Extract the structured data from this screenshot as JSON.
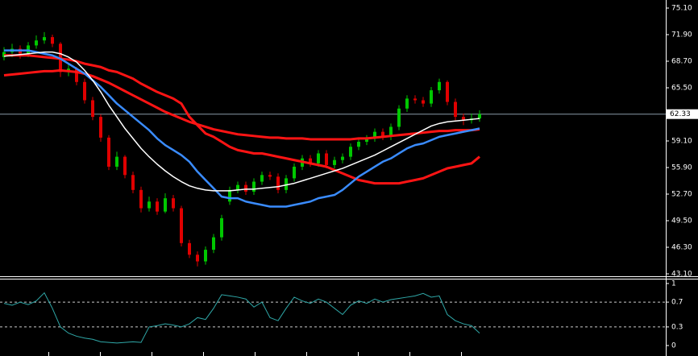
{
  "chart_data": [
    {
      "type": "candlestick",
      "ylim": [
        43.1,
        75.1
      ],
      "yticks": [
        {
          "value": 75.1,
          "label": "75.10"
        },
        {
          "value": 71.9,
          "label": "71.90"
        },
        {
          "value": 68.7,
          "label": "68.70"
        },
        {
          "value": 65.5,
          "label": "65.50"
        },
        {
          "value": 62.3,
          "label": "62.30"
        },
        {
          "value": 59.1,
          "label": "59.10"
        },
        {
          "value": 55.9,
          "label": "55.90"
        },
        {
          "value": 52.7,
          "label": "52.70"
        },
        {
          "value": 49.5,
          "label": "49.50"
        },
        {
          "value": 46.3,
          "label": "46.30"
        },
        {
          "value": 43.1,
          "label": "43.10"
        }
      ],
      "current_price": 62.33,
      "up_color": "#00c800",
      "down_color": "#e00000",
      "open": [
        69.2,
        69.8,
        70.2,
        69.6,
        70.6,
        71.2,
        71.6,
        70.8,
        67.4,
        67.8,
        66.2,
        64.0,
        62.0,
        59.5,
        56.0,
        57.2,
        55.0,
        53.2,
        51.0,
        51.8,
        50.6,
        52.2,
        51.0,
        46.8,
        45.4,
        44.6,
        46.0,
        47.5,
        51.8,
        53.2,
        53.8,
        53.0,
        54.2,
        55.0,
        54.8,
        53.2,
        54.6,
        56.0,
        57.0,
        56.4,
        57.6,
        56.2,
        56.8,
        57.2,
        58.4,
        59.0,
        59.4,
        60.2,
        59.6,
        60.8,
        63.0,
        64.2,
        64.0,
        63.6,
        65.2,
        66.2,
        63.8,
        62.0,
        61.6,
        61.8
      ],
      "high": [
        70.4,
        70.8,
        70.6,
        71.0,
        71.8,
        72.2,
        71.9,
        71.0,
        68.4,
        68.0,
        66.6,
        64.4,
        62.3,
        59.8,
        57.8,
        57.4,
        55.4,
        53.6,
        52.4,
        52.2,
        52.8,
        52.6,
        51.3,
        47.2,
        45.8,
        46.4,
        47.9,
        50.2,
        53.6,
        54.2,
        54.2,
        54.6,
        55.4,
        55.4,
        55.2,
        55.0,
        56.4,
        57.4,
        57.4,
        58.0,
        58.0,
        57.2,
        57.6,
        58.8,
        59.4,
        59.8,
        60.6,
        60.6,
        61.2,
        63.4,
        64.6,
        64.6,
        64.4,
        65.6,
        66.6,
        66.4,
        64.2,
        62.4,
        62.4,
        62.8
      ],
      "low": [
        68.8,
        69.2,
        69.0,
        69.2,
        70.2,
        70.8,
        70.4,
        66.8,
        66.9,
        65.8,
        63.6,
        61.6,
        59.0,
        55.6,
        55.6,
        54.6,
        52.8,
        50.5,
        50.6,
        50.2,
        50.4,
        50.6,
        46.4,
        45.0,
        44.0,
        44.2,
        45.6,
        47.1,
        51.4,
        52.8,
        52.6,
        52.6,
        53.8,
        54.4,
        52.8,
        52.8,
        54.2,
        55.6,
        56.0,
        56.0,
        55.8,
        55.8,
        56.4,
        56.8,
        58.0,
        58.6,
        59.0,
        59.2,
        59.2,
        60.4,
        62.6,
        63.6,
        63.2,
        63.2,
        64.8,
        63.4,
        61.6,
        61.0,
        61.2,
        61.4
      ],
      "close": [
        69.8,
        70.2,
        69.6,
        70.6,
        71.2,
        71.6,
        70.8,
        67.4,
        67.8,
        66.2,
        64.0,
        62.0,
        59.5,
        56.0,
        57.2,
        55.0,
        53.2,
        51.0,
        51.8,
        50.6,
        52.2,
        51.0,
        46.8,
        45.4,
        44.6,
        46.0,
        47.5,
        49.8,
        53.2,
        53.8,
        53.0,
        54.2,
        55.0,
        54.8,
        53.2,
        54.6,
        56.0,
        57.0,
        56.4,
        57.6,
        56.2,
        56.8,
        57.2,
        58.4,
        59.0,
        59.4,
        60.2,
        59.6,
        60.8,
        63.0,
        64.2,
        64.0,
        63.6,
        65.2,
        66.2,
        63.8,
        62.0,
        61.6,
        61.8,
        62.33
      ],
      "series": [
        {
          "color": "#ff1414",
          "width": 3,
          "values": [
            67.0,
            67.1,
            67.2,
            67.3,
            67.4,
            67.5,
            67.5,
            67.6,
            67.5,
            67.4,
            67.2,
            66.9,
            66.5,
            66.1,
            65.6,
            65.1,
            64.6,
            64.1,
            63.6,
            63.1,
            62.6,
            62.2,
            61.8,
            61.4,
            61.1,
            60.8,
            60.5,
            60.3,
            60.1,
            59.9,
            59.8,
            59.7,
            59.6,
            59.5,
            59.5,
            59.4,
            59.4,
            59.4,
            59.3,
            59.3,
            59.3,
            59.3,
            59.3,
            59.3,
            59.4,
            59.4,
            59.5,
            59.6,
            59.7,
            59.8,
            59.9,
            60.0,
            60.1,
            60.2,
            60.3,
            60.3,
            60.4,
            60.4,
            60.4,
            60.5
          ]
        },
        {
          "color": "#ff1414",
          "width": 3,
          "values": [
            69.4,
            69.4,
            69.4,
            69.4,
            69.3,
            69.2,
            69.1,
            69.0,
            68.9,
            68.7,
            68.4,
            68.2,
            68.0,
            67.6,
            67.4,
            67.0,
            66.6,
            66.0,
            65.5,
            65.0,
            64.6,
            64.2,
            63.6,
            62.0,
            61.0,
            60.0,
            59.6,
            59.0,
            58.4,
            58.0,
            57.8,
            57.6,
            57.6,
            57.4,
            57.2,
            57.0,
            56.8,
            56.6,
            56.4,
            56.2,
            56.0,
            55.6,
            55.2,
            54.8,
            54.4,
            54.2,
            54.0,
            54.0,
            54.0,
            54.0,
            54.2,
            54.4,
            54.6,
            55.0,
            55.4,
            55.8,
            56.0,
            56.2,
            56.4,
            57.2
          ]
        },
        {
          "color": "#3a8cff",
          "width": 2.5,
          "values": [
            70.0,
            70.0,
            70.0,
            70.0,
            69.8,
            69.6,
            69.4,
            69.0,
            68.4,
            67.8,
            67.2,
            66.4,
            65.6,
            64.6,
            63.6,
            62.8,
            62.0,
            61.2,
            60.4,
            59.4,
            58.6,
            58.0,
            57.4,
            56.6,
            55.4,
            54.4,
            53.4,
            52.4,
            52.2,
            52.2,
            51.8,
            51.6,
            51.4,
            51.2,
            51.2,
            51.2,
            51.4,
            51.6,
            51.8,
            52.2,
            52.4,
            52.6,
            53.2,
            54.0,
            54.8,
            55.4,
            56.0,
            56.6,
            57.0,
            57.6,
            58.2,
            58.6,
            58.8,
            59.2,
            59.6,
            59.8,
            60.0,
            60.2,
            60.4,
            60.6
          ]
        },
        {
          "color": "#ffffff",
          "width": 1.5,
          "values": [
            69.3,
            69.4,
            69.5,
            69.6,
            69.7,
            69.8,
            69.8,
            69.6,
            69.2,
            68.6,
            67.6,
            66.4,
            65.0,
            63.4,
            62.0,
            60.6,
            59.4,
            58.2,
            57.2,
            56.3,
            55.5,
            54.8,
            54.2,
            53.7,
            53.4,
            53.2,
            53.1,
            53.1,
            53.1,
            53.2,
            53.3,
            53.3,
            53.4,
            53.5,
            53.6,
            53.8,
            54.0,
            54.3,
            54.6,
            54.9,
            55.2,
            55.5,
            55.8,
            56.2,
            56.6,
            57.0,
            57.4,
            57.9,
            58.4,
            58.9,
            59.4,
            59.9,
            60.4,
            60.9,
            61.2,
            61.4,
            61.5,
            61.6,
            61.7,
            61.8
          ]
        }
      ]
    },
    {
      "type": "line",
      "ylim": [
        0,
        1
      ],
      "yticks": [
        1,
        0.7,
        0.3,
        0
      ],
      "grid_lines": [
        0.7,
        0.3
      ],
      "color": "#2fa8a8",
      "values": [
        0.68,
        0.65,
        0.7,
        0.66,
        0.72,
        0.85,
        0.6,
        0.3,
        0.2,
        0.15,
        0.12,
        0.1,
        0.06,
        0.05,
        0.04,
        0.05,
        0.06,
        0.05,
        0.3,
        0.32,
        0.35,
        0.33,
        0.3,
        0.35,
        0.45,
        0.42,
        0.6,
        0.82,
        0.8,
        0.78,
        0.75,
        0.62,
        0.7,
        0.45,
        0.4,
        0.6,
        0.78,
        0.72,
        0.68,
        0.75,
        0.7,
        0.6,
        0.5,
        0.65,
        0.72,
        0.68,
        0.75,
        0.7,
        0.74,
        0.76,
        0.78,
        0.8,
        0.84,
        0.78,
        0.8,
        0.5,
        0.4,
        0.35,
        0.32,
        0.2
      ]
    }
  ]
}
